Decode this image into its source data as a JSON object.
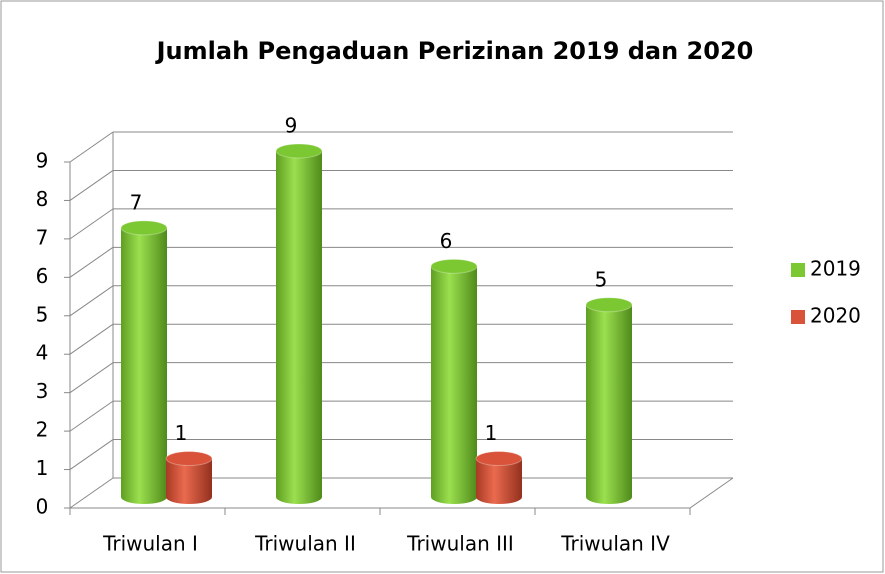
{
  "chart_data": {
    "type": "bar3d",
    "title": "Jumlah Pengaduan Perizinan 2019 dan 2020",
    "categories": [
      "Triwulan I",
      "Triwulan II",
      "Triwulan III",
      "Triwulan IV"
    ],
    "series": [
      {
        "name": "2019",
        "color": "#7cc832",
        "values": [
          7,
          9,
          6,
          5
        ]
      },
      {
        "name": "2020",
        "color": "#d9523a",
        "values": [
          1,
          null,
          1,
          null
        ]
      }
    ],
    "ylim": [
      0,
      9
    ],
    "yticks": [
      0,
      1,
      2,
      3,
      4,
      5,
      6,
      7,
      8,
      9
    ],
    "grid": true,
    "legend": "right"
  }
}
